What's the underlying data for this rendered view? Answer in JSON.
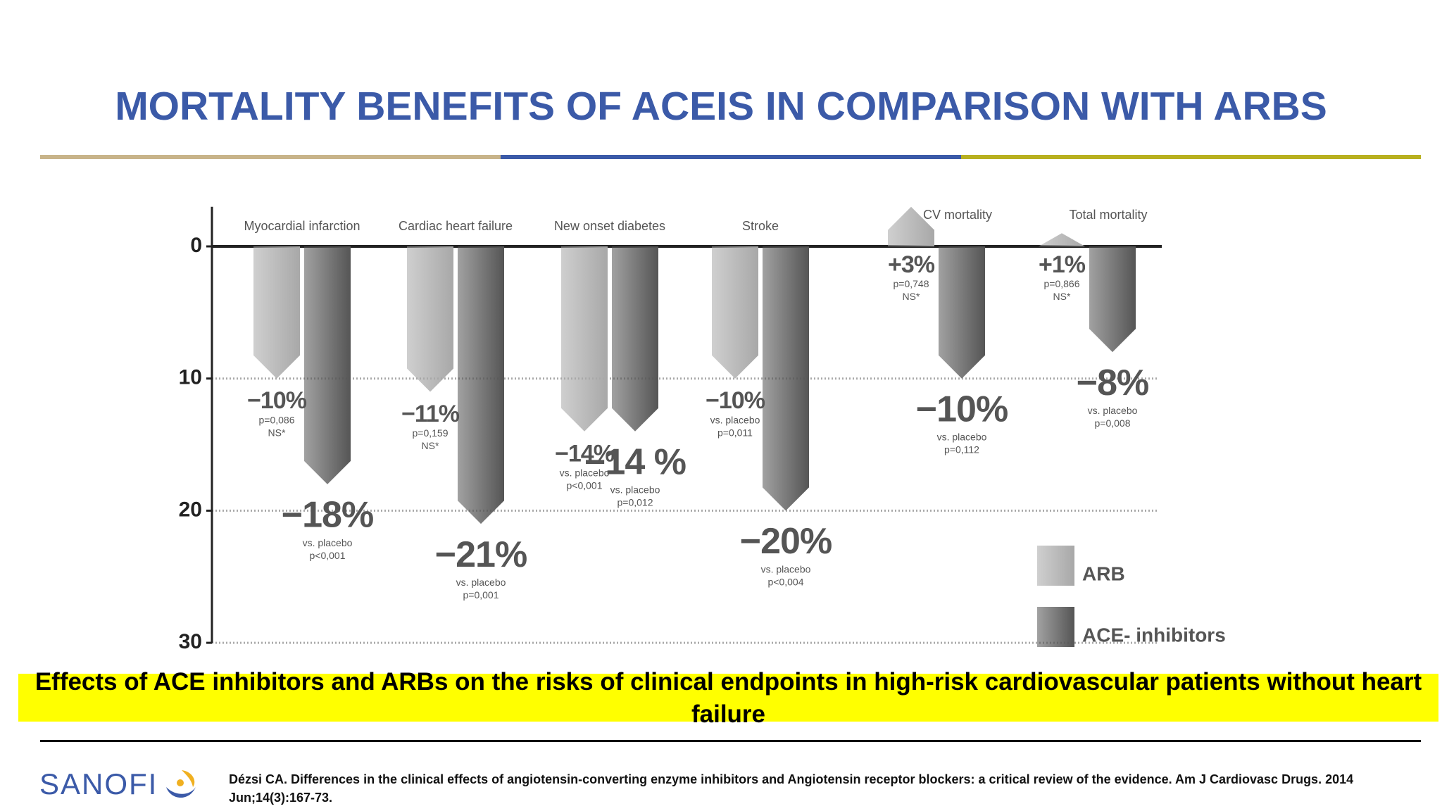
{
  "title": "MORTALITY BENEFITS OF ACEIS IN COMPARISON WITH ARBS",
  "chart_data": {
    "type": "bar",
    "categories": [
      "Myocardial infarction",
      "Cardiac heart failure",
      "New onset diabetes",
      "Stroke",
      "CV mortality",
      "Total mortality"
    ],
    "series": [
      {
        "name": "ARB",
        "color": "#a8a8a8",
        "values": [
          -10,
          -11,
          -14,
          -10,
          3,
          1
        ],
        "value_labels": [
          "−10%",
          "−11%",
          "−14%",
          "−10%",
          "+3%",
          "+1%"
        ],
        "notes": [
          [
            "p=0,086",
            "NS*"
          ],
          [
            "p=0,159",
            "NS*"
          ],
          [
            "vs. placebo",
            "p<0,001"
          ],
          [
            "vs. placebo",
            "p=0,011"
          ],
          [
            "p=0,748",
            "NS*"
          ],
          [
            "p=0,866",
            "NS*"
          ]
        ]
      },
      {
        "name": "ACE- inhibitors",
        "color": "#555555",
        "values": [
          -18,
          -21,
          -14,
          -20,
          -10,
          -8
        ],
        "value_labels": [
          "−18%",
          "−21%",
          "−14 %",
          "−20%",
          "−10%",
          "−8%"
        ],
        "notes": [
          [
            "vs. placebo",
            "p<0,001"
          ],
          [
            "vs. placebo",
            "p=0,001"
          ],
          [
            "vs. placebo",
            "p=0,012"
          ],
          [
            "vs. placebo",
            "p<0,004"
          ],
          [
            "vs. placebo",
            "p=0,112"
          ],
          [
            "vs. placebo",
            "p=0,008"
          ]
        ]
      }
    ],
    "ylim": [
      -30,
      3
    ],
    "yticks": [
      0,
      {
        "value": -10,
        "label": "10"
      },
      {
        "value": -20,
        "label": "20"
      },
      {
        "value": -30,
        "label": "30"
      }
    ],
    "grid": true,
    "legend": "bottom right"
  },
  "caption": "Effects of ACE inhibitors and ARBs on the risks of clinical endpoints in high-risk cardiovascular patients without heart failure",
  "footer": {
    "logo": "SANOFI",
    "reference": "Dézsi CA. Differences in the clinical effects of angiotensin-converting enzyme inhibitors and Angiotensin receptor blockers: a critical review of the evidence. Am J Cardiovasc Drugs. 2014 Jun;14(3):167-73."
  }
}
